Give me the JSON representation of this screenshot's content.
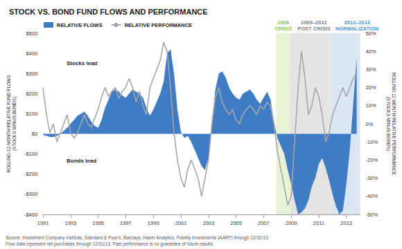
{
  "chart_data": {
    "type": "line",
    "title": "STOCK VS. BOND FUND FLOWS AND PERFORMANCE",
    "y_label": [
      "ROLLING 12-MONTH RELATIVE FUND FLOWS",
      "(STOCKS MINUS BONDS)"
    ],
    "y2_label": [
      "ROLLING 12-MONTH RELATIVE PERFORMANCE",
      "(STOCKS MINUS BONDS)"
    ],
    "source": [
      "Source: Investment Company Institute, Standard & Poor's, Barclays, Haver Analytics, Fidelity Investments (AART) through 12/31/13.",
      "Flow data represent net purchases through 12/31/13. Past performance is no guarantee of future results."
    ],
    "annotations": [
      {
        "text": "Stocks lead",
        "side": "above"
      },
      {
        "text": "Bonds lead",
        "side": "below"
      }
    ],
    "legend": "top-left",
    "grid": false,
    "x": [
      1991,
      1991.25,
      1991.5,
      1991.75,
      1992,
      1992.25,
      1992.5,
      1992.75,
      1993,
      1993.25,
      1993.5,
      1993.75,
      1994,
      1994.25,
      1994.5,
      1994.75,
      1995,
      1995.25,
      1995.5,
      1995.75,
      1996,
      1996.25,
      1996.5,
      1996.75,
      1997,
      1997.25,
      1997.5,
      1997.75,
      1998,
      1998.25,
      1998.5,
      1998.75,
      1999,
      1999.25,
      1999.5,
      1999.75,
      2000,
      2000.25,
      2000.5,
      2000.75,
      2001,
      2001.25,
      2001.5,
      2001.75,
      2002,
      2002.25,
      2002.5,
      2002.75,
      2003,
      2003.25,
      2003.5,
      2003.75,
      2004,
      2004.25,
      2004.5,
      2004.75,
      2005,
      2005.25,
      2005.5,
      2005.75,
      2006,
      2006.25,
      2006.5,
      2006.75,
      2007,
      2007.25,
      2007.5,
      2007.75,
      2008,
      2008.25,
      2008.5,
      2008.75,
      2009,
      2009.25,
      2009.5,
      2009.75,
      2010,
      2010.25,
      2010.5,
      2010.75,
      2011,
      2011.25,
      2011.5,
      2011.75,
      2012,
      2012.25,
      2012.5,
      2012.75,
      2013,
      2013.25,
      2013.5,
      2013.75
    ],
    "xlim": [
      1991,
      2014
    ],
    "xticks": [
      1991,
      1993,
      1995,
      1997,
      1999,
      2001,
      2003,
      2005,
      2007,
      2009,
      2011,
      2013
    ],
    "ylim": [
      -400,
      500
    ],
    "yticks": [
      {
        "value": -400,
        "label": "-$400"
      },
      {
        "value": -300,
        "label": "-$300"
      },
      {
        "value": -200,
        "label": "-$200"
      },
      {
        "value": -100,
        "label": "-$100"
      },
      {
        "value": 0,
        "label": "$0"
      },
      {
        "value": 100,
        "label": "$100"
      },
      {
        "value": 200,
        "label": "$200"
      },
      {
        "value": 300,
        "label": "$300"
      },
      {
        "value": 400,
        "label": "$400"
      },
      {
        "value": 500,
        "label": "$500"
      }
    ],
    "y2lim": [
      -50,
      50
    ],
    "y2ticks": [
      {
        "value": -50,
        "label": "-50%"
      },
      {
        "value": -40,
        "label": "-40%"
      },
      {
        "value": -30,
        "label": "-30%"
      },
      {
        "value": -20,
        "label": "-20%"
      },
      {
        "value": -10,
        "label": "-10%"
      },
      {
        "value": 0,
        "label": "0%"
      },
      {
        "value": 10,
        "label": "10%"
      },
      {
        "value": 20,
        "label": "20%"
      },
      {
        "value": 30,
        "label": "30%"
      },
      {
        "value": 40,
        "label": "40%"
      },
      {
        "value": 50,
        "label": "50%"
      }
    ],
    "bands": [
      {
        "label": [
          "2008",
          "CRISIS"
        ],
        "start": 2007.9,
        "end": 2008.95,
        "color": "#e9f1d6",
        "label_color": "#8dc63f"
      },
      {
        "label": [
          "2009–2012",
          "POST CRISIS"
        ],
        "start": 2008.95,
        "end": 2011.95,
        "color": "#e4e4e4",
        "label_color": "#808080"
      },
      {
        "label": [
          "2012–2013",
          "NORMALIZATION"
        ],
        "start": 2011.95,
        "end": 2014,
        "color": "#dbe6f3",
        "label_color": "#4f93d1"
      }
    ],
    "series": [
      {
        "name": "RELATIVE FLOWS",
        "type": "area",
        "color": "#3f7cc4",
        "axis": "y",
        "values": [
          -5,
          -10,
          -15,
          -15,
          -10,
          0,
          15,
          30,
          50,
          70,
          90,
          100,
          110,
          90,
          60,
          40,
          30,
          70,
          130,
          170,
          210,
          220,
          210,
          190,
          180,
          200,
          220,
          210,
          200,
          180,
          130,
          90,
          120,
          160,
          200,
          260,
          400,
          420,
          300,
          120,
          10,
          -20,
          -10,
          -40,
          -80,
          -120,
          -160,
          -180,
          -120,
          60,
          220,
          300,
          310,
          280,
          230,
          200,
          180,
          170,
          200,
          210,
          220,
          200,
          170,
          150,
          180,
          210,
          170,
          60,
          -20,
          -60,
          -100,
          -180,
          -250,
          -330,
          -400,
          -390,
          -370,
          -330,
          -260,
          -220,
          -150,
          -120,
          -170,
          -230,
          -300,
          -360,
          -400,
          -380,
          -250,
          -80,
          150,
          380
        ]
      },
      {
        "name": "RELATIVE PERFORMANCE",
        "type": "line",
        "color": "#a6a6a6",
        "axis": "y2",
        "values": [
          20,
          5,
          -5,
          0,
          -10,
          -5,
          0,
          5,
          -5,
          -8,
          -5,
          0,
          5,
          0,
          -2,
          3,
          8,
          15,
          20,
          15,
          18,
          20,
          14,
          18,
          20,
          25,
          20,
          12,
          18,
          10,
          5,
          20,
          25,
          30,
          35,
          45,
          40,
          20,
          -5,
          -20,
          -30,
          -35,
          -25,
          -20,
          -25,
          -30,
          -40,
          -30,
          -20,
          0,
          15,
          20,
          12,
          8,
          5,
          8,
          2,
          0,
          5,
          8,
          10,
          8,
          5,
          10,
          8,
          12,
          10,
          0,
          -15,
          -25,
          -35,
          -45,
          -40,
          -10,
          20,
          40,
          25,
          5,
          10,
          20,
          15,
          5,
          -10,
          -5,
          5,
          10,
          15,
          20,
          15,
          20,
          25,
          28
        ]
      }
    ]
  }
}
